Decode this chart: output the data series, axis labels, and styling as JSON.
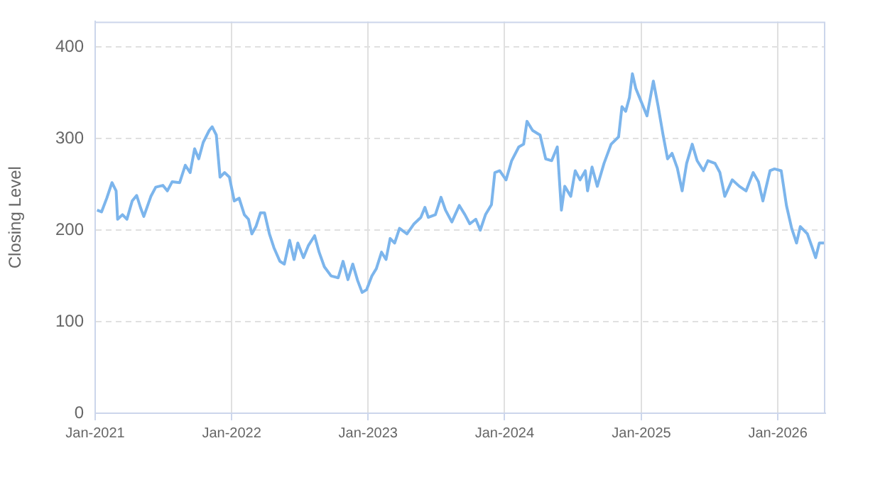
{
  "chart_data": {
    "type": "line",
    "ylabel": "Closing Level",
    "xlim": [
      "2021-01-01",
      "2026-05-08"
    ],
    "ylim": [
      0,
      428
    ],
    "yticks": [
      0,
      100,
      200,
      300,
      400
    ],
    "xticks": [
      {
        "value": "2021-01-01",
        "label": "Jan-2021"
      },
      {
        "value": "2022-01-01",
        "label": "Jan-2022"
      },
      {
        "value": "2023-01-01",
        "label": "Jan-2023"
      },
      {
        "value": "2024-01-01",
        "label": "Jan-2024"
      },
      {
        "value": "2025-01-01",
        "label": "Jan-2025"
      },
      {
        "value": "2026-01-01",
        "label": "Jan-2026"
      }
    ],
    "grid": true,
    "legend": false,
    "marker": "none",
    "line_style": "solid",
    "series": [
      {
        "color": "#7cb5ec",
        "x": [
          "2021-01-06",
          "2021-01-18",
          "2021-02-01",
          "2021-02-15",
          "2021-02-26",
          "2021-03-02",
          "2021-03-15",
          "2021-03-27",
          "2021-04-10",
          "2021-04-22",
          "2021-05-02",
          "2021-05-11",
          "2021-05-30",
          "2021-06-12",
          "2021-07-01",
          "2021-07-13",
          "2021-07-26",
          "2021-08-15",
          "2021-08-30",
          "2021-09-12",
          "2021-09-24",
          "2021-10-05",
          "2021-10-17",
          "2021-11-02",
          "2021-11-10",
          "2021-11-21",
          "2021-12-01",
          "2021-12-13",
          "2021-12-26",
          "2022-01-08",
          "2022-01-21",
          "2022-02-04",
          "2022-02-15",
          "2022-02-24",
          "2022-03-07",
          "2022-03-19",
          "2022-03-30",
          "2022-04-12",
          "2022-04-24",
          "2022-05-10",
          "2022-05-22",
          "2022-06-05",
          "2022-06-17",
          "2022-06-27",
          "2022-07-12",
          "2022-07-25",
          "2022-08-11",
          "2022-08-23",
          "2022-09-06",
          "2022-09-24",
          "2022-10-13",
          "2022-10-26",
          "2022-11-08",
          "2022-11-21",
          "2022-12-04",
          "2022-12-16",
          "2022-12-28",
          "2023-01-11",
          "2023-01-23",
          "2023-02-06",
          "2023-02-18",
          "2023-03-01",
          "2023-03-13",
          "2023-03-26",
          "2023-04-15",
          "2023-05-04",
          "2023-05-22",
          "2023-06-02",
          "2023-06-11",
          "2023-06-30",
          "2023-07-15",
          "2023-07-27",
          "2023-08-13",
          "2023-09-02",
          "2023-09-17",
          "2023-09-30",
          "2023-10-16",
          "2023-10-28",
          "2023-11-11",
          "2023-11-27",
          "2023-12-06",
          "2023-12-19",
          "2024-01-05",
          "2024-01-20",
          "2024-02-08",
          "2024-02-21",
          "2024-03-01",
          "2024-03-16",
          "2024-04-05",
          "2024-04-20",
          "2024-05-06",
          "2024-05-21",
          "2024-06-01",
          "2024-06-10",
          "2024-06-26",
          "2024-07-08",
          "2024-07-21",
          "2024-08-04",
          "2024-08-10",
          "2024-08-22",
          "2024-09-05",
          "2024-09-23",
          "2024-10-12",
          "2024-11-01",
          "2024-11-10",
          "2024-11-20",
          "2024-11-30",
          "2024-12-08",
          "2024-12-17",
          "2024-12-27",
          "2025-01-16",
          "2025-02-02",
          "2025-02-15",
          "2025-02-28",
          "2025-03-12",
          "2025-03-24",
          "2025-04-07",
          "2025-04-20",
          "2025-05-02",
          "2025-05-17",
          "2025-05-30",
          "2025-06-16",
          "2025-06-28",
          "2025-07-17",
          "2025-07-30",
          "2025-08-12",
          "2025-09-01",
          "2025-09-20",
          "2025-10-08",
          "2025-10-27",
          "2025-11-10",
          "2025-11-22",
          "2025-12-11",
          "2025-12-23",
          "2026-01-10",
          "2026-01-24",
          "2026-02-07",
          "2026-02-20",
          "2026-03-02",
          "2026-03-21",
          "2026-04-03",
          "2026-04-12",
          "2026-04-22",
          "2026-05-05"
        ],
        "values": [
          222,
          220,
          235,
          252,
          243,
          212,
          217,
          212,
          232,
          238,
          225,
          215,
          237,
          247,
          249,
          243,
          253,
          252,
          271,
          263,
          289,
          278,
          296,
          309,
          313,
          304,
          258,
          263,
          258,
          232,
          235,
          217,
          212,
          196,
          204,
          219,
          219,
          196,
          181,
          166,
          163,
          189,
          168,
          186,
          170,
          183,
          194,
          176,
          160,
          150,
          148,
          166,
          146,
          163,
          145,
          132,
          135,
          150,
          158,
          176,
          168,
          191,
          186,
          202,
          196,
          207,
          214,
          225,
          214,
          217,
          236,
          222,
          209,
          227,
          217,
          207,
          212,
          200,
          217,
          228,
          263,
          265,
          255,
          276,
          291,
          294,
          319,
          309,
          304,
          278,
          276,
          291,
          222,
          248,
          237,
          265,
          255,
          265,
          243,
          269,
          248,
          273,
          294,
          302,
          335,
          330,
          345,
          371,
          355,
          345,
          325,
          363,
          335,
          304,
          278,
          284,
          268,
          243,
          273,
          294,
          276,
          265,
          276,
          273,
          263,
          237,
          255,
          248,
          243,
          263,
          253,
          232,
          265,
          267,
          265,
          227,
          202,
          186,
          204,
          196,
          181,
          170,
          186,
          186
        ]
      }
    ]
  }
}
